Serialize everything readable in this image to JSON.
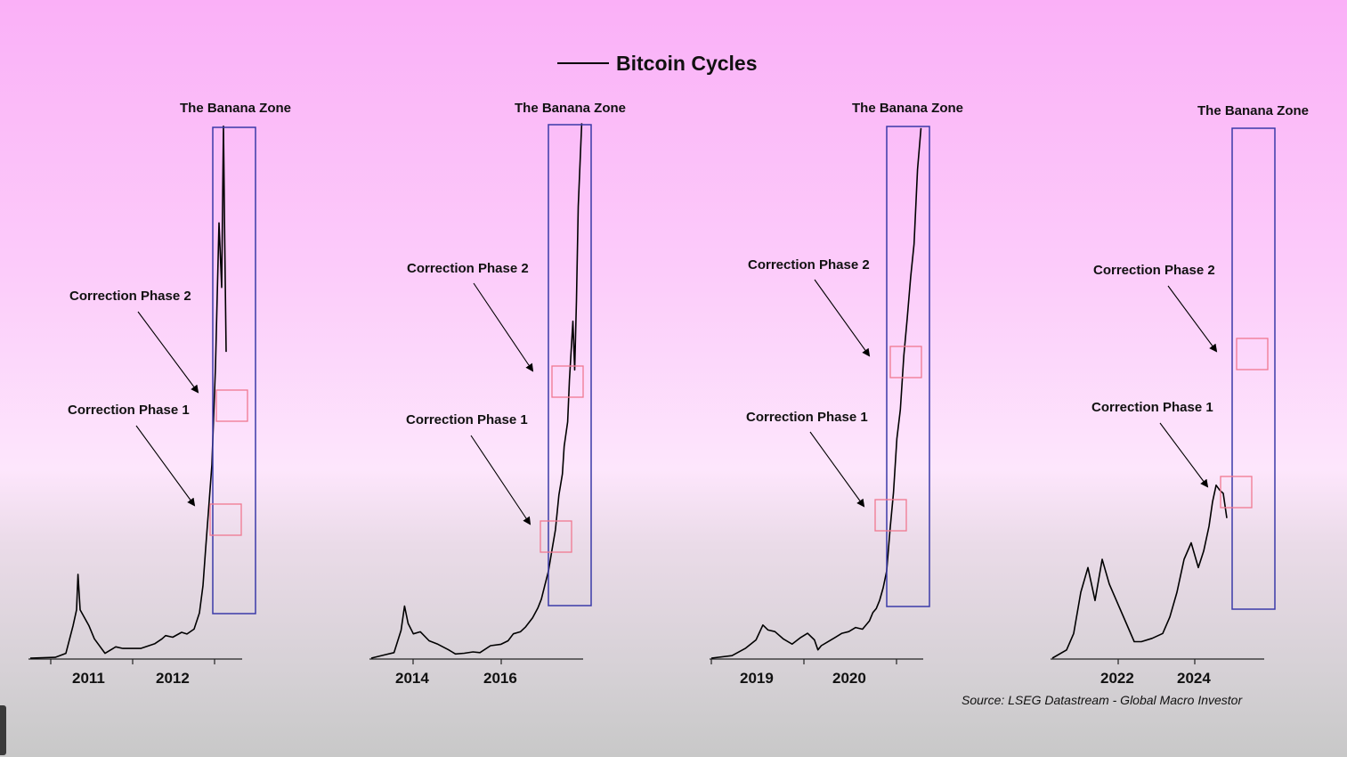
{
  "title": "Bitcoin Cycles",
  "source": "Source: LSEG Datastream - Global Macro Investor",
  "colors": {
    "zone_box": "#3a3aa8",
    "phase_box": "#f07890",
    "line": "#000000"
  },
  "chart_data": [
    {
      "type": "line",
      "x_ticks": [
        "2011",
        "2012"
      ],
      "zone_label": "The Banana Zone",
      "phase1_label": "Correction Phase 1",
      "phase2_label": "Correction Phase 2",
      "series": [
        {
          "points": [
            [
              0,
              0
            ],
            [
              0.14,
              0.005
            ],
            [
              0.2,
              0.03
            ],
            [
              0.24,
              0.2
            ],
            [
              0.26,
              0.3
            ],
            [
              0.268,
              0.52
            ],
            [
              0.28,
              0.3
            ],
            [
              0.33,
              0.2
            ],
            [
              0.36,
              0.12
            ],
            [
              0.42,
              0.03
            ],
            [
              0.48,
              0.07
            ],
            [
              0.52,
              0.06
            ],
            [
              0.55,
              0.06
            ],
            [
              0.62,
              0.06
            ],
            [
              0.7,
              0.09
            ],
            [
              0.74,
              0.12
            ],
            [
              0.76,
              0.14
            ],
            [
              0.8,
              0.13
            ],
            [
              0.85,
              0.16
            ],
            [
              0.88,
              0.15
            ],
            [
              0.92,
              0.18
            ],
            [
              0.95,
              0.28
            ],
            [
              0.97,
              0.45
            ],
            [
              0.985,
              0.68
            ],
            [
              1.0,
              0.9
            ],
            [
              1.02,
              1.2
            ],
            [
              1.04,
              1.8
            ],
            [
              1.06,
              2.7
            ],
            [
              1.075,
              2.3
            ],
            [
              1.085,
              3.3
            ],
            [
              1.092,
              2.6
            ],
            [
              1.1,
              1.9
            ]
          ]
        }
      ]
    },
    {
      "type": "line",
      "x_ticks": [
        "2014",
        "2016"
      ],
      "zone_label": "The Banana Zone",
      "phase1_label": "Correction Phase 1",
      "phase2_label": "Correction Phase 2",
      "series": [
        {
          "points": [
            [
              0,
              0
            ],
            [
              0.08,
              0.05
            ],
            [
              0.13,
              0.08
            ],
            [
              0.17,
              0.4
            ],
            [
              0.19,
              0.75
            ],
            [
              0.21,
              0.5
            ],
            [
              0.24,
              0.35
            ],
            [
              0.28,
              0.38
            ],
            [
              0.33,
              0.25
            ],
            [
              0.38,
              0.2
            ],
            [
              0.44,
              0.12
            ],
            [
              0.48,
              0.06
            ],
            [
              0.53,
              0.07
            ],
            [
              0.58,
              0.09
            ],
            [
              0.62,
              0.08
            ],
            [
              0.68,
              0.18
            ],
            [
              0.74,
              0.2
            ],
            [
              0.78,
              0.25
            ],
            [
              0.81,
              0.35
            ],
            [
              0.85,
              0.38
            ],
            [
              0.88,
              0.45
            ],
            [
              0.92,
              0.58
            ],
            [
              0.95,
              0.72
            ],
            [
              0.97,
              0.85
            ],
            [
              0.99,
              1.05
            ],
            [
              1.01,
              1.25
            ],
            [
              1.03,
              1.55
            ],
            [
              1.05,
              1.85
            ],
            [
              1.07,
              2.35
            ],
            [
              1.09,
              2.65
            ],
            [
              1.1,
              3.05
            ],
            [
              1.12,
              3.4
            ],
            [
              1.13,
              4.0
            ],
            [
              1.15,
              4.85
            ],
            [
              1.16,
              4.15
            ],
            [
              1.17,
              5.15
            ],
            [
              1.18,
              6.5
            ],
            [
              1.2,
              7.7
            ]
          ]
        }
      ]
    },
    {
      "type": "line",
      "x_ticks": [
        "2019",
        "2020"
      ],
      "zone_label": "The Banana Zone",
      "phase1_label": "Correction Phase 1",
      "phase2_label": "Correction Phase 2",
      "series": [
        {
          "points": [
            [
              0,
              0
            ],
            [
              0.12,
              0.03
            ],
            [
              0.2,
              0.12
            ],
            [
              0.26,
              0.22
            ],
            [
              0.3,
              0.4
            ],
            [
              0.33,
              0.34
            ],
            [
              0.37,
              0.32
            ],
            [
              0.42,
              0.23
            ],
            [
              0.47,
              0.17
            ],
            [
              0.52,
              0.25
            ],
            [
              0.56,
              0.3
            ],
            [
              0.6,
              0.22
            ],
            [
              0.62,
              0.1
            ],
            [
              0.64,
              0.15
            ],
            [
              0.68,
              0.2
            ],
            [
              0.72,
              0.25
            ],
            [
              0.76,
              0.3
            ],
            [
              0.8,
              0.32
            ],
            [
              0.84,
              0.37
            ],
            [
              0.88,
              0.35
            ],
            [
              0.92,
              0.45
            ],
            [
              0.94,
              0.55
            ],
            [
              0.96,
              0.6
            ],
            [
              0.98,
              0.7
            ],
            [
              1.0,
              0.85
            ],
            [
              1.02,
              1.05
            ],
            [
              1.04,
              1.55
            ],
            [
              1.06,
              2.0
            ],
            [
              1.08,
              2.65
            ],
            [
              1.1,
              3.0
            ],
            [
              1.12,
              3.65
            ],
            [
              1.14,
              4.1
            ],
            [
              1.16,
              4.6
            ],
            [
              1.18,
              5.0
            ],
            [
              1.2,
              5.9
            ],
            [
              1.22,
              6.4
            ]
          ]
        }
      ]
    },
    {
      "type": "line",
      "x_ticks": [
        "2022",
        "2024"
      ],
      "zone_label": "The Banana Zone",
      "phase1_label": "Correction Phase 1",
      "phase2_label": "Correction Phase 2",
      "series": [
        {
          "points": [
            [
              0,
              0
            ],
            [
              0.08,
              0.05
            ],
            [
              0.12,
              0.15
            ],
            [
              0.16,
              0.4
            ],
            [
              0.2,
              0.55
            ],
            [
              0.24,
              0.35
            ],
            [
              0.28,
              0.6
            ],
            [
              0.32,
              0.45
            ],
            [
              0.36,
              0.35
            ],
            [
              0.42,
              0.2
            ],
            [
              0.46,
              0.1
            ],
            [
              0.5,
              0.1
            ],
            [
              0.56,
              0.12
            ],
            [
              0.62,
              0.15
            ],
            [
              0.66,
              0.25
            ],
            [
              0.7,
              0.4
            ],
            [
              0.74,
              0.6
            ],
            [
              0.78,
              0.7
            ],
            [
              0.82,
              0.55
            ],
            [
              0.85,
              0.65
            ],
            [
              0.88,
              0.8
            ],
            [
              0.9,
              0.95
            ],
            [
              0.92,
              1.05
            ],
            [
              0.94,
              1.02
            ],
            [
              0.96,
              1.0
            ],
            [
              0.98,
              0.85
            ]
          ]
        }
      ]
    }
  ]
}
